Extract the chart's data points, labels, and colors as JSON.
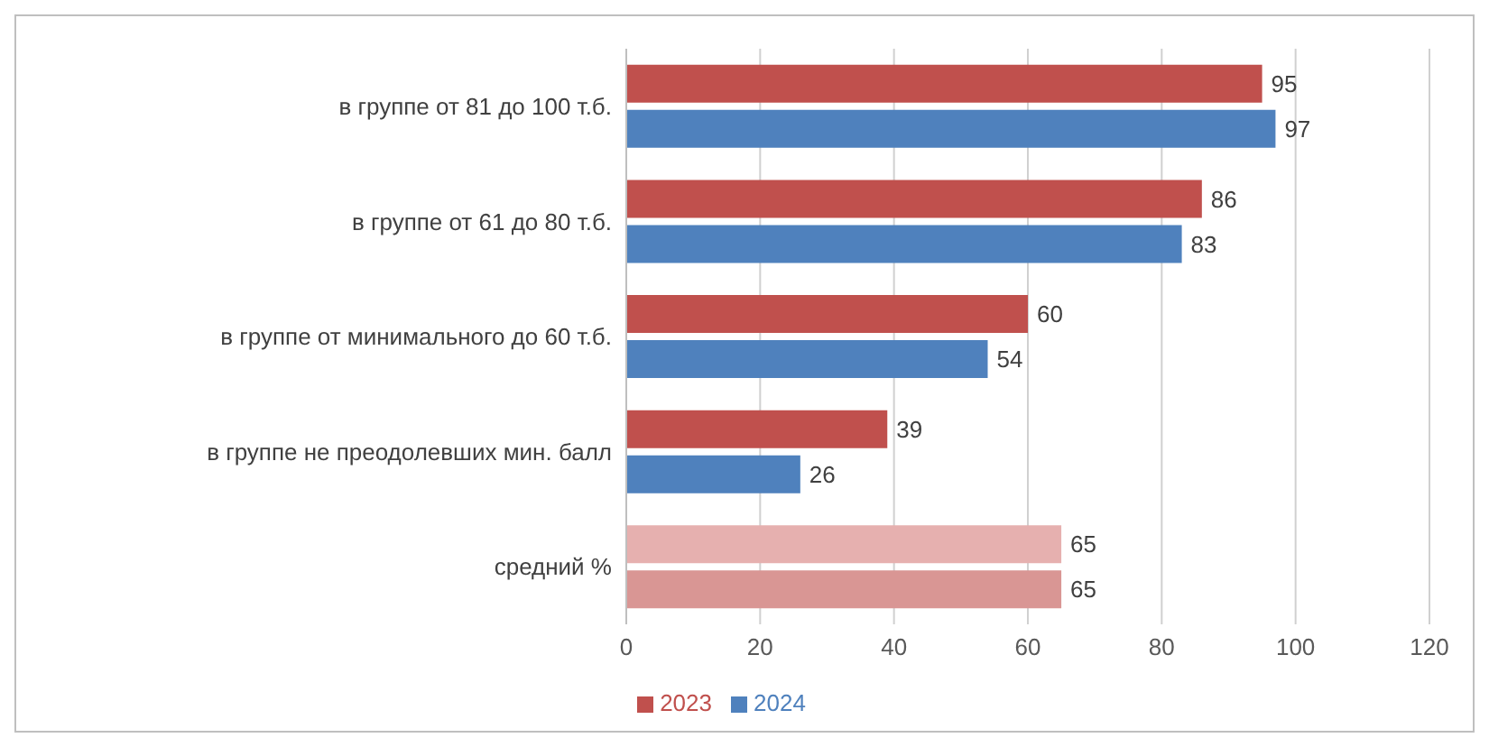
{
  "chart_data": {
    "type": "bar",
    "orientation": "horizontal",
    "categories": [
      "в группе от 81 до 100 т.б.",
      "в группе от 61 до 80 т.б.",
      "в группе от минимального до 60 т.б.",
      "в группе не преодолевших мин. балл",
      "средний %"
    ],
    "series": [
      {
        "name": "2023",
        "color": "#c0504d",
        "colors": [
          "#c0504d",
          "#c0504d",
          "#c0504d",
          "#c0504d",
          "#e6b0af"
        ],
        "values": [
          95,
          86,
          60,
          39,
          65
        ]
      },
      {
        "name": "2024",
        "color": "#4f81bd",
        "colors": [
          "#4f81bd",
          "#4f81bd",
          "#4f81bd",
          "#4f81bd",
          "#d99694"
        ],
        "values": [
          97,
          83,
          54,
          26,
          65
        ]
      }
    ],
    "xlim": [
      0,
      120
    ],
    "xticks": [
      0,
      20,
      40,
      60,
      80,
      100,
      120
    ],
    "grid": "x",
    "legend": "bottom",
    "data_labels": true
  }
}
